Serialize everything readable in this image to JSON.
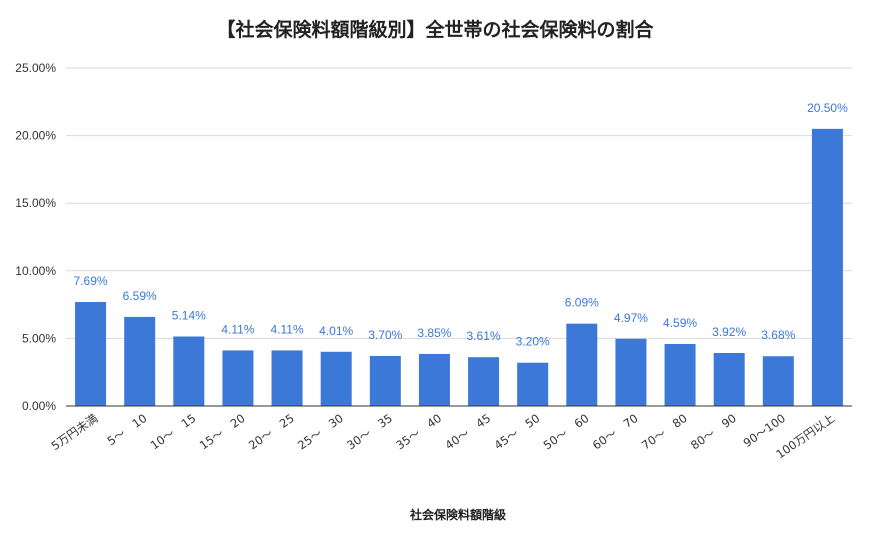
{
  "chart_data": {
    "type": "bar",
    "title": "【社会保険料額階級別】全世帯の社会保険料の割合",
    "xlabel": "社会保険料額階級",
    "ylabel": "",
    "ylim": [
      0,
      25
    ],
    "yticks": [
      "0.00%",
      "5.00%",
      "10.00%",
      "15.00%",
      "20.00%",
      "25.00%"
    ],
    "ytick_values": [
      0,
      5,
      10,
      15,
      20,
      25
    ],
    "grid": true,
    "bar_color": "#3b78d8",
    "label_color": "#3b78d8",
    "categories": [
      "5万円未満",
      "5～　10",
      "10～　15",
      "15～　20",
      "20～　25",
      "25～　30",
      "30～　35",
      "35～　40",
      "40～　45",
      "45～　50",
      "50～　60",
      "60～　70",
      "70～　80",
      "80～　90",
      "90～100",
      "100万円以上"
    ],
    "values": [
      7.69,
      6.59,
      5.14,
      4.11,
      4.11,
      4.01,
      3.7,
      3.85,
      3.61,
      3.2,
      6.09,
      4.97,
      4.59,
      3.92,
      3.68,
      20.5
    ],
    "data_labels": [
      "7.69%",
      "6.59%",
      "5.14%",
      "4.11%",
      "4.11%",
      "4.01%",
      "3.70%",
      "3.85%",
      "3.61%",
      "3.20%",
      "6.09%",
      "4.97%",
      "4.59%",
      "3.92%",
      "3.68%",
      "20.50%"
    ]
  }
}
